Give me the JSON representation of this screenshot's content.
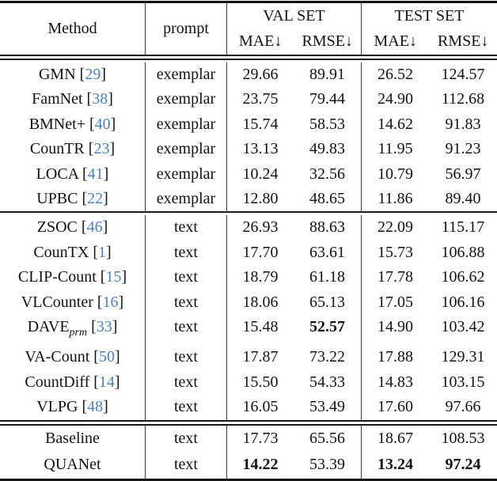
{
  "table": {
    "headers": {
      "method": "Method",
      "prompt": "prompt",
      "val_set": "VAL SET",
      "test_set": "TEST SET",
      "mae": "MAE↓",
      "rmse": "RMSE↓"
    },
    "colors": {
      "citation_blue": "#4a81c0",
      "text": "#121212",
      "rule": "#141414"
    },
    "sections": [
      {
        "name": "exemplar-methods",
        "rows": [
          {
            "method": "GMN",
            "sub": "",
            "cite": "29",
            "prompt": "exemplar",
            "vals": [
              "29.66",
              "89.91",
              "26.52",
              "124.57"
            ],
            "bold": [
              false,
              false,
              false,
              false
            ]
          },
          {
            "method": "FamNet",
            "sub": "",
            "cite": "38",
            "prompt": "exemplar",
            "vals": [
              "23.75",
              "79.44",
              "24.90",
              "112.68"
            ],
            "bold": [
              false,
              false,
              false,
              false
            ]
          },
          {
            "method": "BMNet+",
            "sub": "",
            "cite": "40",
            "prompt": "exemplar",
            "vals": [
              "15.74",
              "58.53",
              "14.62",
              "91.83"
            ],
            "bold": [
              false,
              false,
              false,
              false
            ]
          },
          {
            "method": "CounTR",
            "sub": "",
            "cite": "23",
            "prompt": "exemplar",
            "vals": [
              "13.13",
              "49.83",
              "11.95",
              "91.23"
            ],
            "bold": [
              false,
              false,
              false,
              false
            ]
          },
          {
            "method": "LOCA",
            "sub": "",
            "cite": "41",
            "prompt": "exemplar",
            "vals": [
              "10.24",
              "32.56",
              "10.79",
              "56.97"
            ],
            "bold": [
              false,
              false,
              false,
              false
            ]
          },
          {
            "method": "UPBC",
            "sub": "",
            "cite": "22",
            "prompt": "exemplar",
            "vals": [
              "12.80",
              "48.65",
              "11.86",
              "89.40"
            ],
            "bold": [
              false,
              false,
              false,
              false
            ]
          }
        ]
      },
      {
        "name": "text-methods",
        "rows": [
          {
            "method": "ZSOC",
            "sub": "",
            "cite": "46",
            "prompt": "text",
            "vals": [
              "26.93",
              "88.63",
              "22.09",
              "115.17"
            ],
            "bold": [
              false,
              false,
              false,
              false
            ]
          },
          {
            "method": "CounTX",
            "sub": "",
            "cite": "1",
            "prompt": "text",
            "vals": [
              "17.70",
              "63.61",
              "15.73",
              "106.88"
            ],
            "bold": [
              false,
              false,
              false,
              false
            ]
          },
          {
            "method": "CLIP-Count",
            "sub": "",
            "cite": "15",
            "prompt": "text",
            "vals": [
              "18.79",
              "61.18",
              "17.78",
              "106.62"
            ],
            "bold": [
              false,
              false,
              false,
              false
            ]
          },
          {
            "method": "VLCounter",
            "sub": "",
            "cite": "16",
            "prompt": "text",
            "vals": [
              "18.06",
              "65.13",
              "17.05",
              "106.16"
            ],
            "bold": [
              false,
              false,
              false,
              false
            ]
          },
          {
            "method": "DAVE",
            "sub": "prm",
            "cite": "33",
            "prompt": "text",
            "vals": [
              "15.48",
              "52.57",
              "14.90",
              "103.42"
            ],
            "bold": [
              false,
              true,
              false,
              false
            ]
          },
          {
            "method": "VA-Count",
            "sub": "",
            "cite": "50",
            "prompt": "text",
            "vals": [
              "17.87",
              "73.22",
              "17.88",
              "129.31"
            ],
            "bold": [
              false,
              false,
              false,
              false
            ]
          },
          {
            "method": "CountDiff",
            "sub": "",
            "cite": "14",
            "prompt": "text",
            "vals": [
              "15.50",
              "54.33",
              "14.83",
              "103.15"
            ],
            "bold": [
              false,
              false,
              false,
              false
            ]
          },
          {
            "method": "VLPG",
            "sub": "",
            "cite": "48",
            "prompt": "text",
            "vals": [
              "16.05",
              "53.49",
              "17.60",
              "97.66"
            ],
            "bold": [
              false,
              false,
              false,
              false
            ]
          }
        ]
      },
      {
        "name": "ours",
        "rows": [
          {
            "method": "Baseline",
            "sub": "",
            "cite": "",
            "prompt": "text",
            "vals": [
              "17.73",
              "65.56",
              "18.67",
              "108.53"
            ],
            "bold": [
              false,
              false,
              false,
              false
            ]
          },
          {
            "method": "QUANet",
            "sub": "",
            "cite": "",
            "prompt": "text",
            "vals": [
              "14.22",
              "53.39",
              "13.24",
              "97.24"
            ],
            "bold": [
              true,
              false,
              true,
              true
            ]
          }
        ]
      }
    ]
  }
}
